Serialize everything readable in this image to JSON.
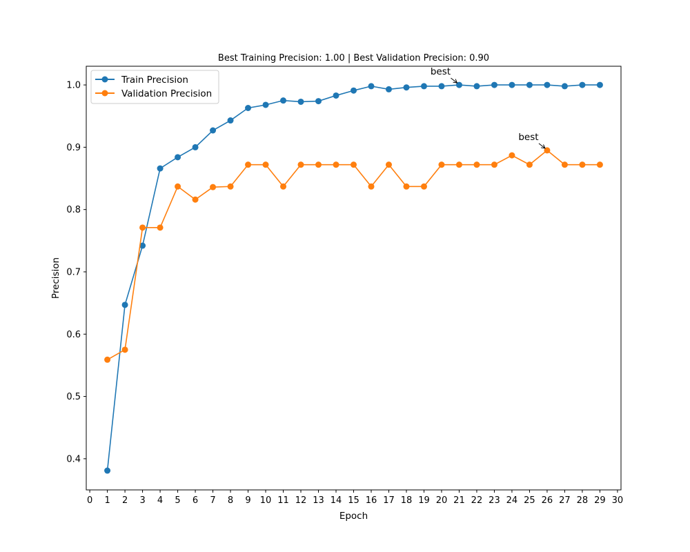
{
  "chart_data": {
    "type": "line",
    "title": "Best Training Precision: 1.00 | Best Validation Precision: 0.90",
    "xlabel": "Epoch",
    "ylabel": "Precision",
    "xlim": [
      -0.2,
      30.2
    ],
    "ylim": [
      0.35,
      1.03
    ],
    "xticks": [
      0,
      1,
      2,
      3,
      4,
      5,
      6,
      7,
      8,
      9,
      10,
      11,
      12,
      13,
      14,
      15,
      16,
      17,
      18,
      19,
      20,
      21,
      22,
      23,
      24,
      25,
      26,
      27,
      28,
      29,
      30
    ],
    "yticks": [
      0.4,
      0.5,
      0.6,
      0.7,
      0.8,
      0.9,
      1.0
    ],
    "ytick_labels": [
      "0.4",
      "0.5",
      "0.6",
      "0.7",
      "0.8",
      "0.9",
      "1.0"
    ],
    "grid": false,
    "legend_position": "upper-left",
    "x": [
      1,
      2,
      3,
      4,
      5,
      6,
      7,
      8,
      9,
      10,
      11,
      12,
      13,
      14,
      15,
      16,
      17,
      18,
      19,
      20,
      21,
      22,
      23,
      24,
      25,
      26,
      27,
      28,
      29
    ],
    "series": [
      {
        "name": "Train Precision",
        "color": "#1f77b4",
        "values": [
          0.381,
          0.647,
          0.742,
          0.866,
          0.884,
          0.9,
          0.927,
          0.943,
          0.963,
          0.968,
          0.975,
          0.973,
          0.974,
          0.983,
          0.991,
          0.998,
          0.993,
          0.996,
          0.998,
          0.998,
          1.0,
          0.998,
          1.0,
          1.0,
          1.0,
          1.0,
          0.998,
          1.0,
          1.0
        ]
      },
      {
        "name": "Validation Precision",
        "color": "#ff7f0e",
        "values": [
          0.559,
          0.575,
          0.771,
          0.771,
          0.837,
          0.816,
          0.836,
          0.837,
          0.872,
          0.872,
          0.837,
          0.872,
          0.872,
          0.872,
          0.872,
          0.837,
          0.872,
          0.837,
          0.837,
          0.872,
          0.872,
          0.872,
          0.872,
          0.887,
          0.872,
          0.895,
          0.872,
          0.872,
          0.872
        ]
      }
    ],
    "annotations": [
      {
        "text": "best",
        "series": "Train Precision",
        "x": 21,
        "y": 1.0
      },
      {
        "text": "best",
        "series": "Validation Precision",
        "x": 26,
        "y": 0.895
      }
    ]
  }
}
